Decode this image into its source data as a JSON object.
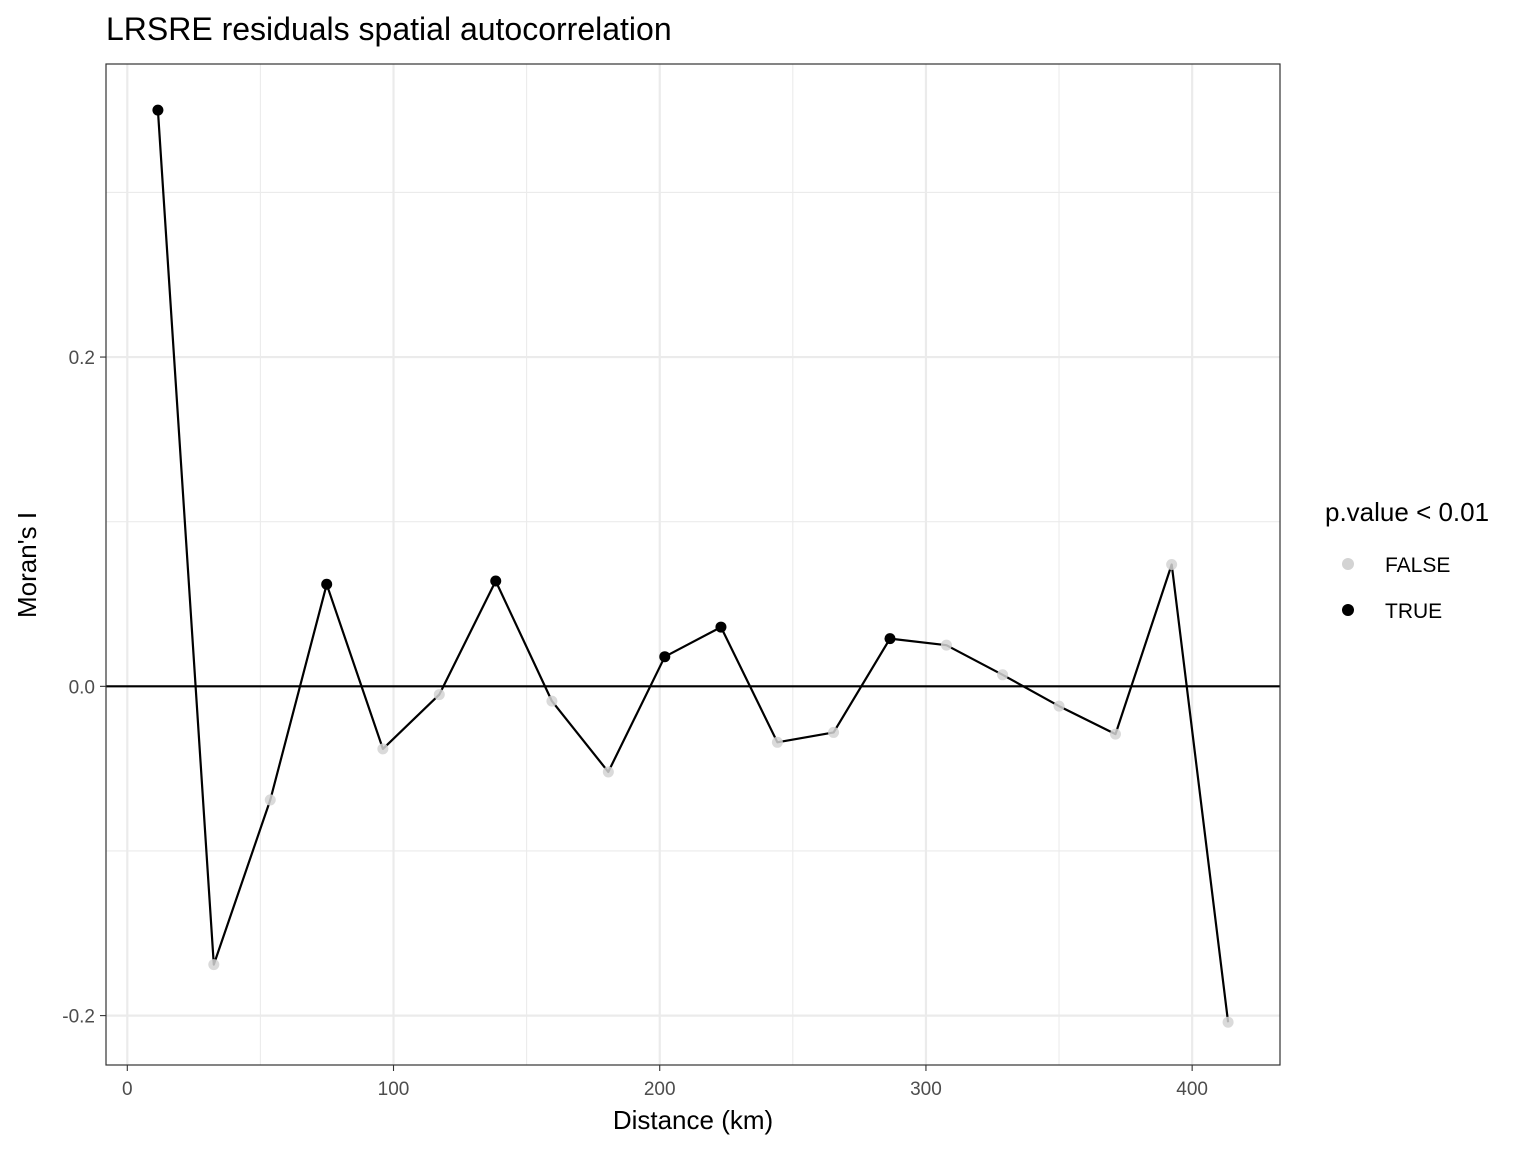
{
  "chart_data": {
    "type": "line",
    "title": "LRSRE residuals spatial autocorrelation",
    "xlabel": "Distance (km)",
    "ylabel": "Moran's I",
    "xlim": [
      -8,
      433
    ],
    "ylim": [
      -0.23,
      0.378
    ],
    "x_ticks": [
      0,
      100,
      200,
      300,
      400
    ],
    "x_tick_labels": [
      "0",
      "100",
      "200",
      "300",
      "400"
    ],
    "y_ticks": [
      -0.2,
      0.0,
      0.2
    ],
    "y_tick_labels": [
      "-0.2",
      "0.0",
      "0.2"
    ],
    "grid": true,
    "reference_line_y": 0,
    "legend": {
      "title": "p.value < 0.01",
      "position": "right",
      "entries": [
        {
          "label": "FALSE",
          "color": "#d3d3d3"
        },
        {
          "label": "TRUE",
          "color": "#000000"
        }
      ]
    },
    "colors": {
      "line": "#000000",
      "true_point": "#000000",
      "false_point": "#d3d3d3"
    },
    "points": [
      {
        "x": 11.5,
        "y": 0.35,
        "significant": true
      },
      {
        "x": 32.5,
        "y": -0.169,
        "significant": false
      },
      {
        "x": 53.7,
        "y": -0.069,
        "significant": false
      },
      {
        "x": 74.9,
        "y": 0.062,
        "significant": true
      },
      {
        "x": 96.0,
        "y": -0.038,
        "significant": false
      },
      {
        "x": 117.2,
        "y": -0.005,
        "significant": false
      },
      {
        "x": 138.4,
        "y": 0.064,
        "significant": true
      },
      {
        "x": 159.5,
        "y": -0.009,
        "significant": false
      },
      {
        "x": 180.7,
        "y": -0.052,
        "significant": false
      },
      {
        "x": 201.9,
        "y": 0.018,
        "significant": true
      },
      {
        "x": 223.0,
        "y": 0.036,
        "significant": true
      },
      {
        "x": 244.2,
        "y": -0.034,
        "significant": false
      },
      {
        "x": 265.3,
        "y": -0.028,
        "significant": false
      },
      {
        "x": 286.5,
        "y": 0.029,
        "significant": true
      },
      {
        "x": 307.7,
        "y": 0.025,
        "significant": false
      },
      {
        "x": 328.8,
        "y": 0.007,
        "significant": false
      },
      {
        "x": 350.0,
        "y": -0.012,
        "significant": false
      },
      {
        "x": 371.2,
        "y": -0.029,
        "significant": false
      },
      {
        "x": 392.3,
        "y": 0.074,
        "significant": false
      },
      {
        "x": 413.5,
        "y": -0.204,
        "significant": false
      }
    ]
  }
}
